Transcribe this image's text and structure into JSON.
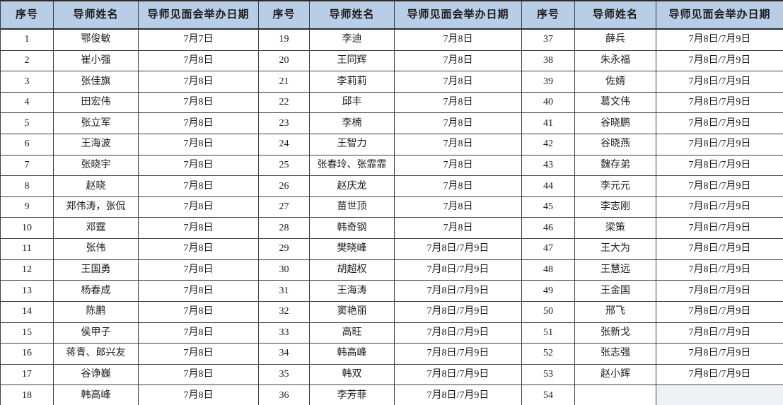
{
  "colors": {
    "header_bg": "#b8cde6",
    "border": "#3d3d3d",
    "border_strong": "#2b2b2b",
    "text": "#1c1c1c",
    "empty_cell_bg": "#eef2f7"
  },
  "table": {
    "columns": [
      "序号",
      "导师姓名",
      "导师见面会举办日期"
    ],
    "groups": [
      {
        "rows": [
          {
            "no": "1",
            "name": "鄂俊敏",
            "date": "7月7日"
          },
          {
            "no": "2",
            "name": "崔小强",
            "date": "7月8日"
          },
          {
            "no": "3",
            "name": "张佳旗",
            "date": "7月8日"
          },
          {
            "no": "4",
            "name": "田宏伟",
            "date": "7月8日"
          },
          {
            "no": "5",
            "name": "张立军",
            "date": "7月8日"
          },
          {
            "no": "6",
            "name": "王海波",
            "date": "7月8日"
          },
          {
            "no": "7",
            "name": "张晓宇",
            "date": "7月8日"
          },
          {
            "no": "8",
            "name": "赵晓",
            "date": "7月8日"
          },
          {
            "no": "9",
            "name": "郑伟涛，张侃",
            "date": "7月8日"
          },
          {
            "no": "10",
            "name": "邓霆",
            "date": "7月8日"
          },
          {
            "no": "11",
            "name": "张伟",
            "date": "7月8日"
          },
          {
            "no": "12",
            "name": "王国勇",
            "date": "7月8日"
          },
          {
            "no": "13",
            "name": "杨春成",
            "date": "7月8日"
          },
          {
            "no": "14",
            "name": "陈鹏",
            "date": "7月8日"
          },
          {
            "no": "15",
            "name": "侯甲子",
            "date": "7月8日"
          },
          {
            "no": "16",
            "name": "蒋青、郎兴友",
            "date": "7月8日"
          },
          {
            "no": "17",
            "name": "谷诤巍",
            "date": "7月8日"
          },
          {
            "no": "18",
            "name": "韩高峰",
            "date": "7月8日"
          }
        ]
      },
      {
        "rows": [
          {
            "no": "19",
            "name": "李迪",
            "date": "7月8日"
          },
          {
            "no": "20",
            "name": "王同辉",
            "date": "7月8日"
          },
          {
            "no": "21",
            "name": "李莉莉",
            "date": "7月8日"
          },
          {
            "no": "22",
            "name": "邱丰",
            "date": "7月8日"
          },
          {
            "no": "23",
            "name": "李楠",
            "date": "7月8日"
          },
          {
            "no": "24",
            "name": "王智力",
            "date": "7月8日"
          },
          {
            "no": "25",
            "name": "张春玲、张霏霏",
            "date": "7月8日"
          },
          {
            "no": "26",
            "name": "赵庆龙",
            "date": "7月8日"
          },
          {
            "no": "27",
            "name": "苗世顶",
            "date": "7月8日"
          },
          {
            "no": "28",
            "name": "韩奇钢",
            "date": "7月8日"
          },
          {
            "no": "29",
            "name": "樊晓峰",
            "date": "7月8日/7月9日"
          },
          {
            "no": "30",
            "name": "胡超权",
            "date": "7月8日/7月9日"
          },
          {
            "no": "31",
            "name": "王海涛",
            "date": "7月8日/7月9日"
          },
          {
            "no": "32",
            "name": "窦艳丽",
            "date": "7月8日/7月9日"
          },
          {
            "no": "33",
            "name": "高旺",
            "date": "7月8日/7月9日"
          },
          {
            "no": "34",
            "name": "韩高峰",
            "date": "7月8日/7月9日"
          },
          {
            "no": "35",
            "name": "韩双",
            "date": "7月8日/7月9日"
          },
          {
            "no": "36",
            "name": "李芳菲",
            "date": "7月8日/7月9日"
          }
        ]
      },
      {
        "rows": [
          {
            "no": "37",
            "name": "薛兵",
            "date": "7月8日/7月9日"
          },
          {
            "no": "38",
            "name": "朱永福",
            "date": "7月8日/7月9日"
          },
          {
            "no": "39",
            "name": "佐婧",
            "date": "7月8日/7月9日"
          },
          {
            "no": "40",
            "name": "葛文伟",
            "date": "7月8日/7月9日"
          },
          {
            "no": "41",
            "name": "谷晓鹏",
            "date": "7月8日/7月9日"
          },
          {
            "no": "42",
            "name": "谷晓燕",
            "date": "7月8日/7月9日"
          },
          {
            "no": "43",
            "name": "魏存弟",
            "date": "7月8日/7月9日"
          },
          {
            "no": "44",
            "name": "李元元",
            "date": "7月8日/7月9日"
          },
          {
            "no": "45",
            "name": "李志刚",
            "date": "7月8日/7月9日"
          },
          {
            "no": "46",
            "name": "梁策",
            "date": "7月8日/7月9日"
          },
          {
            "no": "47",
            "name": "王大为",
            "date": "7月8日/7月9日"
          },
          {
            "no": "48",
            "name": "王慧远",
            "date": "7月8日/7月9日"
          },
          {
            "no": "49",
            "name": "王金国",
            "date": "7月8日/7月9日"
          },
          {
            "no": "50",
            "name": "邢飞",
            "date": "7月8日/7月9日"
          },
          {
            "no": "51",
            "name": "张新戈",
            "date": "7月8日/7月9日"
          },
          {
            "no": "52",
            "name": "张志强",
            "date": "7月8日/7月9日"
          },
          {
            "no": "53",
            "name": "赵小辉",
            "date": "7月8日/7月9日"
          },
          {
            "no": "54",
            "name": "",
            "date": ""
          }
        ]
      }
    ]
  }
}
